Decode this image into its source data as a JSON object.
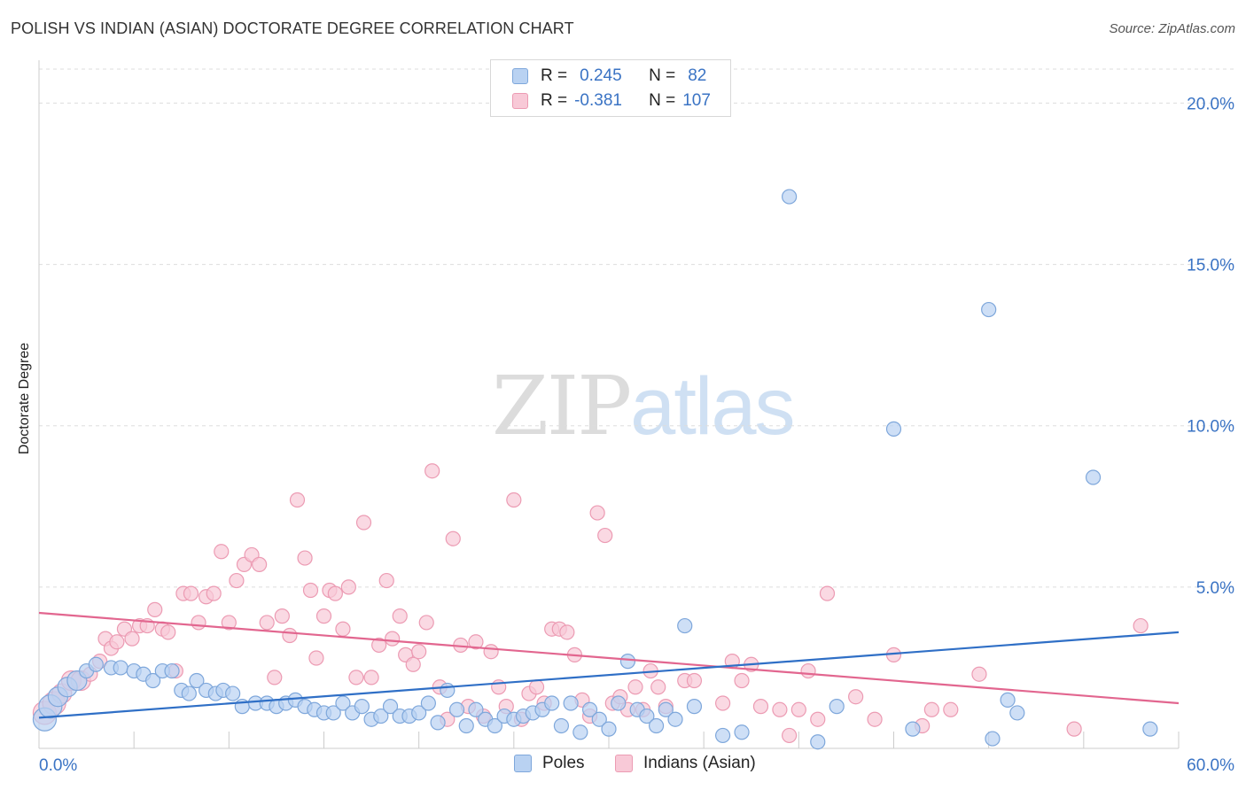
{
  "title": "POLISH VS INDIAN (ASIAN) DOCTORATE DEGREE CORRELATION CHART",
  "source": "Source: ZipAtlas.com",
  "watermark": {
    "zip": "ZIP",
    "atlas": "atlas"
  },
  "legend": {
    "r_label": "R =",
    "n_label": "N =",
    "rows": [
      {
        "name": "Poles",
        "r": "0.245",
        "n": "82"
      },
      {
        "name": "Indians (Asian)",
        "r": "-0.381",
        "n": "107"
      }
    ]
  },
  "colors": {
    "blue_fill": "#b9d2f2",
    "blue_stroke": "#7ea7db",
    "blue_line": "#2f6fc6",
    "pink_fill": "#f8c9d7",
    "pink_stroke": "#ec9bb3",
    "pink_line": "#e2668f",
    "tick_text": "#3a73c4",
    "grid": "#dddddd"
  },
  "chart_data": {
    "type": "scatter",
    "title": "POLISH VS INDIAN (ASIAN) DOCTORATE DEGREE CORRELATION CHART",
    "xlabel": "",
    "ylabel": "Doctorate Degree",
    "xlim": [
      0,
      60
    ],
    "ylim": [
      0,
      21
    ],
    "x_tick_labels": [
      "0.0%",
      "60.0%"
    ],
    "y_ticks": [
      5,
      10,
      15,
      20
    ],
    "y_tick_labels": [
      "5.0%",
      "10.0%",
      "15.0%",
      "20.0%"
    ],
    "legend_position": "bottom-center",
    "series": [
      {
        "name": "Poles",
        "trend": [
          [
            0,
            0.95
          ],
          [
            60,
            3.6
          ]
        ],
        "points": [
          [
            0.3,
            0.9
          ],
          [
            0.6,
            1.3
          ],
          [
            1.0,
            1.6
          ],
          [
            1.5,
            1.9
          ],
          [
            2.0,
            2.1
          ],
          [
            2.5,
            2.4
          ],
          [
            3.0,
            2.6
          ],
          [
            3.8,
            2.5
          ],
          [
            4.3,
            2.5
          ],
          [
            5.0,
            2.4
          ],
          [
            5.5,
            2.3
          ],
          [
            6.0,
            2.1
          ],
          [
            6.5,
            2.4
          ],
          [
            7.0,
            2.4
          ],
          [
            7.5,
            1.8
          ],
          [
            7.9,
            1.7
          ],
          [
            8.3,
            2.1
          ],
          [
            8.8,
            1.8
          ],
          [
            9.3,
            1.7
          ],
          [
            9.7,
            1.8
          ],
          [
            10.2,
            1.7
          ],
          [
            10.7,
            1.3
          ],
          [
            11.4,
            1.4
          ],
          [
            12.0,
            1.4
          ],
          [
            12.5,
            1.3
          ],
          [
            13.0,
            1.4
          ],
          [
            13.5,
            1.5
          ],
          [
            14.0,
            1.3
          ],
          [
            14.5,
            1.2
          ],
          [
            15.0,
            1.1
          ],
          [
            15.5,
            1.1
          ],
          [
            16.0,
            1.4
          ],
          [
            16.5,
            1.1
          ],
          [
            17.0,
            1.3
          ],
          [
            17.5,
            0.9
          ],
          [
            18.0,
            1.0
          ],
          [
            18.5,
            1.3
          ],
          [
            19.0,
            1.0
          ],
          [
            19.5,
            1.0
          ],
          [
            20.0,
            1.1
          ],
          [
            20.5,
            1.4
          ],
          [
            21.0,
            0.8
          ],
          [
            21.5,
            1.8
          ],
          [
            22.0,
            1.2
          ],
          [
            22.5,
            0.7
          ],
          [
            23.0,
            1.2
          ],
          [
            23.5,
            0.9
          ],
          [
            24.0,
            0.7
          ],
          [
            24.5,
            1.0
          ],
          [
            25.0,
            0.9
          ],
          [
            25.5,
            1.0
          ],
          [
            26.0,
            1.1
          ],
          [
            26.5,
            1.2
          ],
          [
            27.0,
            1.4
          ],
          [
            27.5,
            0.7
          ],
          [
            28.0,
            1.4
          ],
          [
            28.5,
            0.5
          ],
          [
            29.0,
            1.2
          ],
          [
            29.5,
            0.9
          ],
          [
            30.0,
            0.6
          ],
          [
            30.5,
            1.4
          ],
          [
            31.0,
            2.7
          ],
          [
            31.5,
            1.2
          ],
          [
            32.0,
            1.0
          ],
          [
            32.5,
            0.7
          ],
          [
            33.0,
            1.2
          ],
          [
            33.5,
            0.9
          ],
          [
            34.0,
            3.8
          ],
          [
            34.5,
            1.3
          ],
          [
            36.0,
            0.4
          ],
          [
            37.0,
            0.5
          ],
          [
            39.5,
            17.1
          ],
          [
            41.0,
            0.2
          ],
          [
            42.0,
            1.3
          ],
          [
            45.0,
            9.9
          ],
          [
            46.0,
            0.6
          ],
          [
            50.0,
            13.6
          ],
          [
            50.2,
            0.3
          ],
          [
            51.0,
            1.5
          ],
          [
            51.5,
            1.1
          ],
          [
            55.5,
            8.4
          ],
          [
            58.5,
            0.6
          ]
        ]
      },
      {
        "name": "Indians (Asian)",
        "trend": [
          [
            0,
            4.2
          ],
          [
            60,
            1.4
          ]
        ],
        "points": [
          [
            0.3,
            1.1
          ],
          [
            0.8,
            1.4
          ],
          [
            1.2,
            1.7
          ],
          [
            1.7,
            2.1
          ],
          [
            2.2,
            2.1
          ],
          [
            2.7,
            2.3
          ],
          [
            3.2,
            2.7
          ],
          [
            3.5,
            3.4
          ],
          [
            3.8,
            3.1
          ],
          [
            4.1,
            3.3
          ],
          [
            4.5,
            3.7
          ],
          [
            4.9,
            3.4
          ],
          [
            5.3,
            3.8
          ],
          [
            5.7,
            3.8
          ],
          [
            6.1,
            4.3
          ],
          [
            6.5,
            3.7
          ],
          [
            6.8,
            3.6
          ],
          [
            7.2,
            2.4
          ],
          [
            7.6,
            4.8
          ],
          [
            8.0,
            4.8
          ],
          [
            8.4,
            3.9
          ],
          [
            8.8,
            4.7
          ],
          [
            9.2,
            4.8
          ],
          [
            9.6,
            6.1
          ],
          [
            10.0,
            3.9
          ],
          [
            10.4,
            5.2
          ],
          [
            10.8,
            5.7
          ],
          [
            11.2,
            6.0
          ],
          [
            11.6,
            5.7
          ],
          [
            12.0,
            3.9
          ],
          [
            12.4,
            2.2
          ],
          [
            12.8,
            4.1
          ],
          [
            13.2,
            3.5
          ],
          [
            13.6,
            7.7
          ],
          [
            14.0,
            5.9
          ],
          [
            14.3,
            4.9
          ],
          [
            14.6,
            2.8
          ],
          [
            15.0,
            4.1
          ],
          [
            15.3,
            4.9
          ],
          [
            15.6,
            4.8
          ],
          [
            16.0,
            3.7
          ],
          [
            16.3,
            5.0
          ],
          [
            16.7,
            2.2
          ],
          [
            17.1,
            7.0
          ],
          [
            17.5,
            2.2
          ],
          [
            17.9,
            3.2
          ],
          [
            18.3,
            5.2
          ],
          [
            18.6,
            3.4
          ],
          [
            19.0,
            4.1
          ],
          [
            19.3,
            2.9
          ],
          [
            19.7,
            2.6
          ],
          [
            20.0,
            3.0
          ],
          [
            20.4,
            3.9
          ],
          [
            20.7,
            8.6
          ],
          [
            21.1,
            1.9
          ],
          [
            21.5,
            0.9
          ],
          [
            21.8,
            6.5
          ],
          [
            22.2,
            3.2
          ],
          [
            22.6,
            1.3
          ],
          [
            23.0,
            3.3
          ],
          [
            23.4,
            1.0
          ],
          [
            23.8,
            3.0
          ],
          [
            24.2,
            1.9
          ],
          [
            24.6,
            1.3
          ],
          [
            25.0,
            7.7
          ],
          [
            25.4,
            0.9
          ],
          [
            25.8,
            1.7
          ],
          [
            26.2,
            1.9
          ],
          [
            26.6,
            1.4
          ],
          [
            27.0,
            3.7
          ],
          [
            27.4,
            3.7
          ],
          [
            27.8,
            3.6
          ],
          [
            28.2,
            2.9
          ],
          [
            28.6,
            1.5
          ],
          [
            29.0,
            1.0
          ],
          [
            29.4,
            7.3
          ],
          [
            29.8,
            6.6
          ],
          [
            30.2,
            1.4
          ],
          [
            30.6,
            1.6
          ],
          [
            31.0,
            1.2
          ],
          [
            31.4,
            1.9
          ],
          [
            31.8,
            1.2
          ],
          [
            32.2,
            2.4
          ],
          [
            32.6,
            1.9
          ],
          [
            33.0,
            1.3
          ],
          [
            34.0,
            2.1
          ],
          [
            34.5,
            2.1
          ],
          [
            36.0,
            1.4
          ],
          [
            36.5,
            2.7
          ],
          [
            37.0,
            2.1
          ],
          [
            37.5,
            2.6
          ],
          [
            38.0,
            1.3
          ],
          [
            39.0,
            1.2
          ],
          [
            39.5,
            0.4
          ],
          [
            40.0,
            1.2
          ],
          [
            40.5,
            2.4
          ],
          [
            41.0,
            0.9
          ],
          [
            41.5,
            4.8
          ],
          [
            43.0,
            1.6
          ],
          [
            44.0,
            0.9
          ],
          [
            45.0,
            2.9
          ],
          [
            46.5,
            0.7
          ],
          [
            47.0,
            1.2
          ],
          [
            48.0,
            1.2
          ],
          [
            49.5,
            2.3
          ],
          [
            54.5,
            0.6
          ],
          [
            58.0,
            3.8
          ]
        ]
      }
    ]
  }
}
